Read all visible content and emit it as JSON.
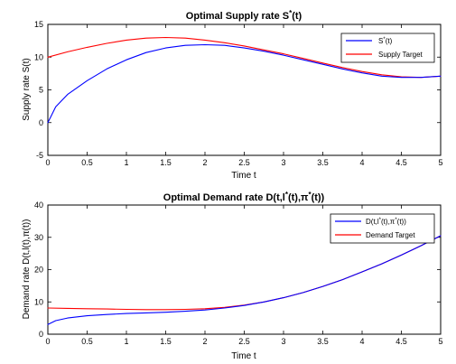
{
  "colors": {
    "axes": "#000000",
    "background": "#ffffff"
  },
  "chart_data": [
    {
      "type": "line",
      "title": "Optimal Supply rate S*(t)",
      "xlabel": "Time t",
      "ylabel": "Supply rate S(t)",
      "xlim": [
        0,
        5
      ],
      "ylim": [
        -5,
        15
      ],
      "xticks": [
        "0",
        "0.5",
        "1",
        "1.5",
        "2",
        "2.5",
        "3",
        "3.5",
        "4",
        "4.5",
        "5"
      ],
      "yticks": [
        "-5",
        "0",
        "5",
        "10",
        "15"
      ],
      "grid": false,
      "legend_position": "top-right",
      "series": [
        {
          "name": "S*(t)",
          "color": "#0000ff",
          "x": [
            0,
            0.1,
            0.25,
            0.5,
            0.75,
            1,
            1.25,
            1.5,
            1.75,
            2,
            2.25,
            2.5,
            2.75,
            3,
            3.25,
            3.5,
            3.75,
            4,
            4.25,
            4.5,
            4.75,
            5
          ],
          "y": [
            0,
            2.4,
            4.3,
            6.4,
            8.2,
            9.6,
            10.7,
            11.4,
            11.8,
            11.9,
            11.8,
            11.4,
            10.9,
            10.3,
            9.6,
            8.9,
            8.2,
            7.6,
            7.1,
            6.9,
            6.9,
            7.1
          ]
        },
        {
          "name": "Supply Target",
          "color": "#ff0000",
          "x": [
            0,
            0.25,
            0.5,
            0.75,
            1,
            1.25,
            1.5,
            1.75,
            2,
            2.25,
            2.5,
            2.75,
            3,
            3.25,
            3.5,
            3.75,
            4,
            4.25,
            4.5,
            4.75,
            5
          ],
          "y": [
            10,
            10.8,
            11.5,
            12.1,
            12.6,
            12.9,
            13.0,
            12.9,
            12.6,
            12.2,
            11.7,
            11.1,
            10.5,
            9.8,
            9.1,
            8.4,
            7.8,
            7.3,
            7.0,
            6.9,
            7.1
          ]
        }
      ]
    },
    {
      "type": "line",
      "title": "Optimal Demand rate D(t,l*(t),π*(t))",
      "xlabel": "Time t",
      "ylabel": "Demand rate D(t,l(t),π(t))",
      "xlim": [
        0,
        5
      ],
      "ylim": [
        0,
        40
      ],
      "xticks": [
        "0",
        "0.5",
        "1",
        "1.5",
        "2",
        "2.5",
        "3",
        "3.5",
        "4",
        "4.5",
        "5"
      ],
      "yticks": [
        "0",
        "10",
        "20",
        "30",
        "40"
      ],
      "grid": false,
      "legend_position": "top-right",
      "series": [
        {
          "name": "D(t,l*(t),π*(t))",
          "color": "#0000ff",
          "x": [
            0,
            0.1,
            0.25,
            0.5,
            0.75,
            1,
            1.25,
            1.5,
            1.75,
            2,
            2.25,
            2.5,
            2.75,
            3,
            3.25,
            3.5,
            3.75,
            4,
            4.25,
            4.5,
            4.75,
            5
          ],
          "y": [
            3.0,
            4.2,
            5.0,
            5.7,
            6.1,
            6.4,
            6.6,
            6.8,
            7.1,
            7.5,
            8.1,
            8.9,
            10.0,
            11.3,
            12.9,
            14.8,
            16.9,
            19.3,
            21.8,
            24.5,
            27.4,
            30.5
          ]
        },
        {
          "name": "Demand Target",
          "color": "#ff0000",
          "x": [
            0,
            0.25,
            0.5,
            0.75,
            1,
            1.25,
            1.5,
            1.75,
            2,
            2.25,
            2.5,
            2.75,
            3,
            3.25,
            3.5,
            3.75,
            4,
            4.25,
            4.5,
            4.75,
            5
          ],
          "y": [
            8.1,
            8.0,
            7.9,
            7.8,
            7.7,
            7.6,
            7.6,
            7.7,
            7.9,
            8.3,
            9.0,
            10.0,
            11.3,
            12.9,
            14.8,
            16.9,
            19.3,
            21.8,
            24.5,
            27.4,
            30.5
          ]
        }
      ]
    }
  ]
}
